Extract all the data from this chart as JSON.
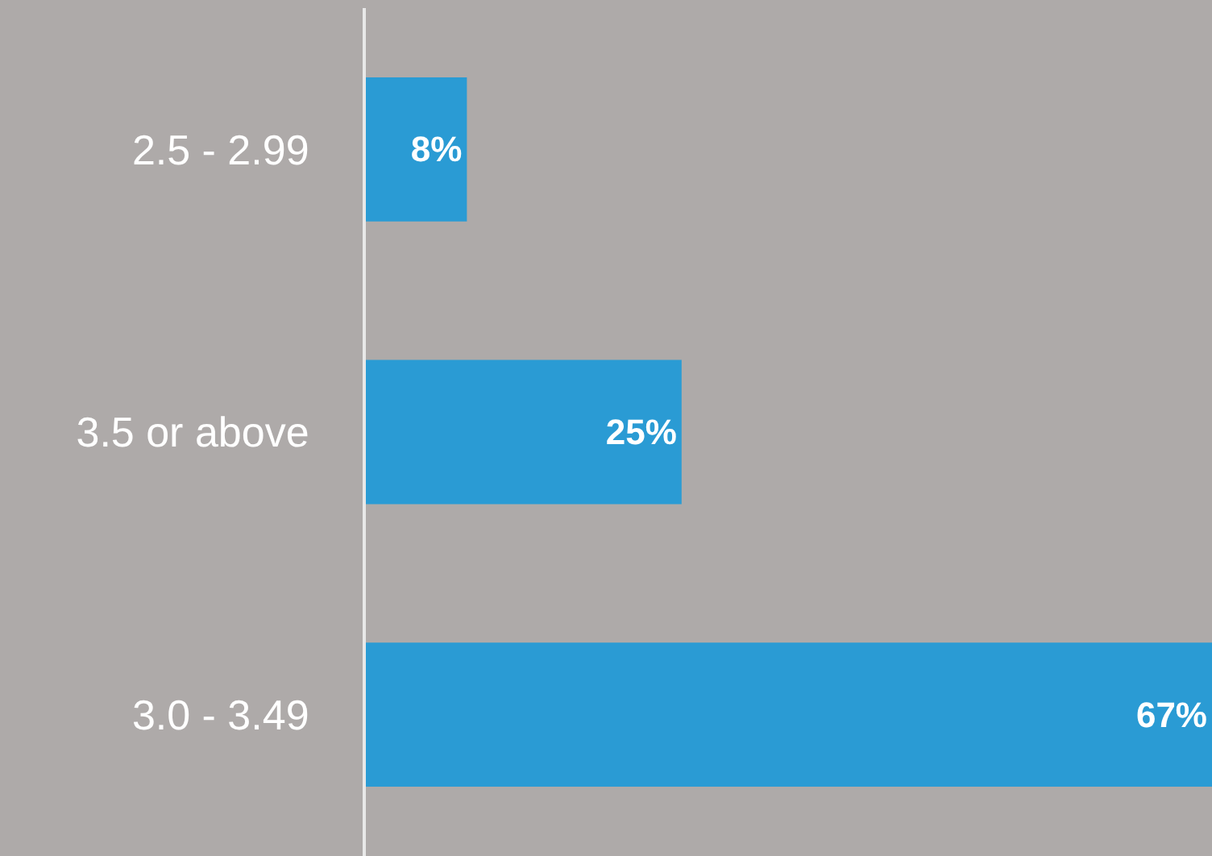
{
  "chart_data": {
    "type": "bar",
    "orientation": "horizontal",
    "categories": [
      "2.5 - 2.99",
      "3.5 or above",
      "3.0 - 3.49"
    ],
    "values": [
      8,
      25,
      67
    ],
    "value_labels": [
      "8%",
      "25%",
      "67%"
    ],
    "color": "#2a9bd4"
  }
}
